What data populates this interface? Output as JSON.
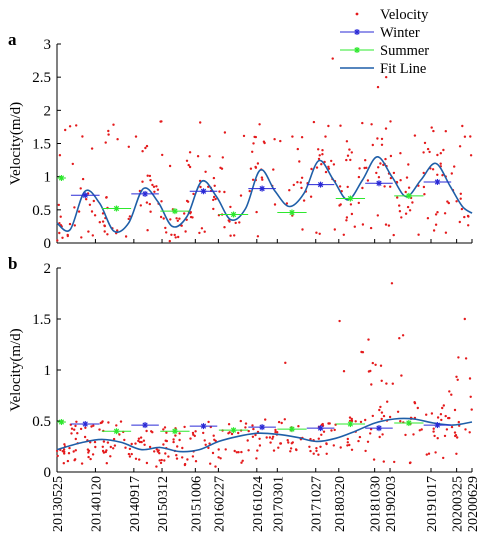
{
  "chart_data": [
    {
      "panel_label": "a",
      "type": "scatter",
      "ylabel": "Velocity(m/d)",
      "ylim": [
        0,
        3
      ],
      "yticks": [
        "0",
        "0.5",
        "1",
        "1.5",
        "2",
        "2.5",
        "3"
      ],
      "x_range": [
        "2013-05-25",
        "2020-06-29"
      ],
      "legend": {
        "position": "top-right",
        "entries": [
          "Velocity",
          "Winter",
          "Summer",
          "Fit Line"
        ]
      },
      "series": [
        {
          "name": "Velocity",
          "kind": "points",
          "color": "#e41a1c",
          "note_low": 0.1,
          "note_high": 1.9,
          "dense_ranges": [
            {
              "from": "2013-05-25",
              "to": "2020-06-29",
              "min": 0.05,
              "max": 1.9
            }
          ]
        },
        {
          "name": "Winter",
          "kind": "seasonal-mean",
          "color": "#2a2ad6",
          "segments": [
            {
              "start": "2013-08-20",
              "end": "2014-02-15",
              "value": 0.72
            },
            {
              "start": "2014-09-01",
              "end": "2015-02-20",
              "value": 0.74
            },
            {
              "start": "2015-09-01",
              "end": "2016-02-20",
              "value": 0.78
            },
            {
              "start": "2016-09-01",
              "end": "2017-02-20",
              "value": 0.82
            },
            {
              "start": "2017-09-01",
              "end": "2018-02-20",
              "value": 0.88
            },
            {
              "start": "2018-09-01",
              "end": "2019-02-20",
              "value": 0.9
            },
            {
              "start": "2019-09-01",
              "end": "2020-02-20",
              "value": 0.92
            }
          ]
        },
        {
          "name": "Summer",
          "kind": "seasonal-mean",
          "color": "#2ee82e",
          "segments": [
            {
              "start": "2013-05-25",
              "end": "2013-07-20",
              "value": 0.98
            },
            {
              "start": "2014-03-01",
              "end": "2014-08-31",
              "value": 0.52
            },
            {
              "start": "2015-03-01",
              "end": "2015-08-31",
              "value": 0.48
            },
            {
              "start": "2016-03-01",
              "end": "2016-08-31",
              "value": 0.43
            },
            {
              "start": "2017-03-01",
              "end": "2017-08-31",
              "value": 0.46
            },
            {
              "start": "2018-03-01",
              "end": "2018-08-31",
              "value": 0.67
            },
            {
              "start": "2019-03-01",
              "end": "2019-08-31",
              "value": 0.71
            }
          ]
        },
        {
          "name": "Fit Line",
          "kind": "line",
          "color": "#1f5fa8",
          "x": [
            "2013-05-25",
            "2013-08-15",
            "2013-11-15",
            "2014-02-15",
            "2014-05-15",
            "2014-08-15",
            "2014-11-15",
            "2015-02-15",
            "2015-05-15",
            "2015-08-15",
            "2015-11-15",
            "2016-02-15",
            "2016-05-15",
            "2016-08-15",
            "2016-11-15",
            "2017-02-15",
            "2017-05-15",
            "2017-08-15",
            "2017-11-15",
            "2018-02-15",
            "2018-05-15",
            "2018-08-15",
            "2018-11-15",
            "2019-02-15",
            "2019-05-15",
            "2019-08-15",
            "2019-11-15",
            "2020-02-15",
            "2020-04-30",
            "2020-06-29"
          ],
          "y": [
            0.3,
            0.2,
            0.78,
            0.6,
            0.18,
            0.3,
            0.82,
            0.62,
            0.25,
            0.4,
            0.93,
            0.7,
            0.35,
            0.52,
            1.1,
            0.78,
            0.55,
            0.75,
            1.24,
            0.95,
            0.65,
            0.95,
            1.3,
            1.0,
            0.7,
            0.95,
            1.2,
            0.85,
            0.55,
            0.45
          ]
        }
      ]
    },
    {
      "panel_label": "b",
      "type": "scatter",
      "ylabel": "Velocity(m/d)",
      "ylim": [
        0,
        2
      ],
      "yticks": [
        "0",
        "0.5",
        "1",
        "1.5",
        "2"
      ],
      "x_range": [
        "2013-05-25",
        "2020-06-29"
      ],
      "xticks": [
        "20130525",
        "20140120",
        "20140917",
        "20150312",
        "20151006",
        "20160227",
        "20161024",
        "20170301",
        "20171027",
        "20180320",
        "20181030",
        "20190203",
        "20191017",
        "20200325",
        "20200629"
      ],
      "series": [
        {
          "name": "Velocity",
          "kind": "points",
          "color": "#e41a1c",
          "note_low": 0.02,
          "note_high": 1.85
        },
        {
          "name": "Winter",
          "kind": "seasonal-mean",
          "color": "#2a2ad6",
          "segments": [
            {
              "start": "2013-08-20",
              "end": "2014-02-15",
              "value": 0.47
            },
            {
              "start": "2014-09-01",
              "end": "2015-02-20",
              "value": 0.46
            },
            {
              "start": "2015-09-01",
              "end": "2016-02-20",
              "value": 0.45
            },
            {
              "start": "2016-09-01",
              "end": "2017-02-20",
              "value": 0.44
            },
            {
              "start": "2017-09-01",
              "end": "2018-02-20",
              "value": 0.43
            },
            {
              "start": "2018-09-01",
              "end": "2019-02-20",
              "value": 0.43
            },
            {
              "start": "2019-09-01",
              "end": "2020-02-20",
              "value": 0.46
            }
          ]
        },
        {
          "name": "Summer",
          "kind": "seasonal-mean",
          "color": "#2ee82e",
          "segments": [
            {
              "start": "2013-05-25",
              "end": "2013-07-20",
              "value": 0.49
            },
            {
              "start": "2014-03-01",
              "end": "2014-08-31",
              "value": 0.4
            },
            {
              "start": "2015-03-01",
              "end": "2015-08-31",
              "value": 0.4
            },
            {
              "start": "2016-03-01",
              "end": "2016-08-31",
              "value": 0.41
            },
            {
              "start": "2017-03-01",
              "end": "2017-08-31",
              "value": 0.42
            },
            {
              "start": "2018-03-01",
              "end": "2018-08-31",
              "value": 0.47
            },
            {
              "start": "2019-03-01",
              "end": "2019-08-31",
              "value": 0.48
            }
          ]
        },
        {
          "name": "Fit Line",
          "kind": "line",
          "color": "#1f5fa8",
          "x": [
            "2013-05-25",
            "2013-11-01",
            "2014-03-01",
            "2014-07-01",
            "2014-11-01",
            "2015-03-01",
            "2015-07-01",
            "2015-11-01",
            "2016-03-01",
            "2016-07-01",
            "2016-11-01",
            "2017-03-01",
            "2017-07-01",
            "2017-11-01",
            "2018-03-01",
            "2018-07-01",
            "2018-11-01",
            "2019-03-01",
            "2019-07-01",
            "2019-11-01",
            "2020-03-01",
            "2020-06-29"
          ],
          "y": [
            0.22,
            0.29,
            0.32,
            0.29,
            0.22,
            0.24,
            0.2,
            0.22,
            0.3,
            0.35,
            0.38,
            0.37,
            0.34,
            0.3,
            0.33,
            0.4,
            0.48,
            0.52,
            0.52,
            0.48,
            0.46,
            0.49
          ]
        }
      ]
    }
  ]
}
